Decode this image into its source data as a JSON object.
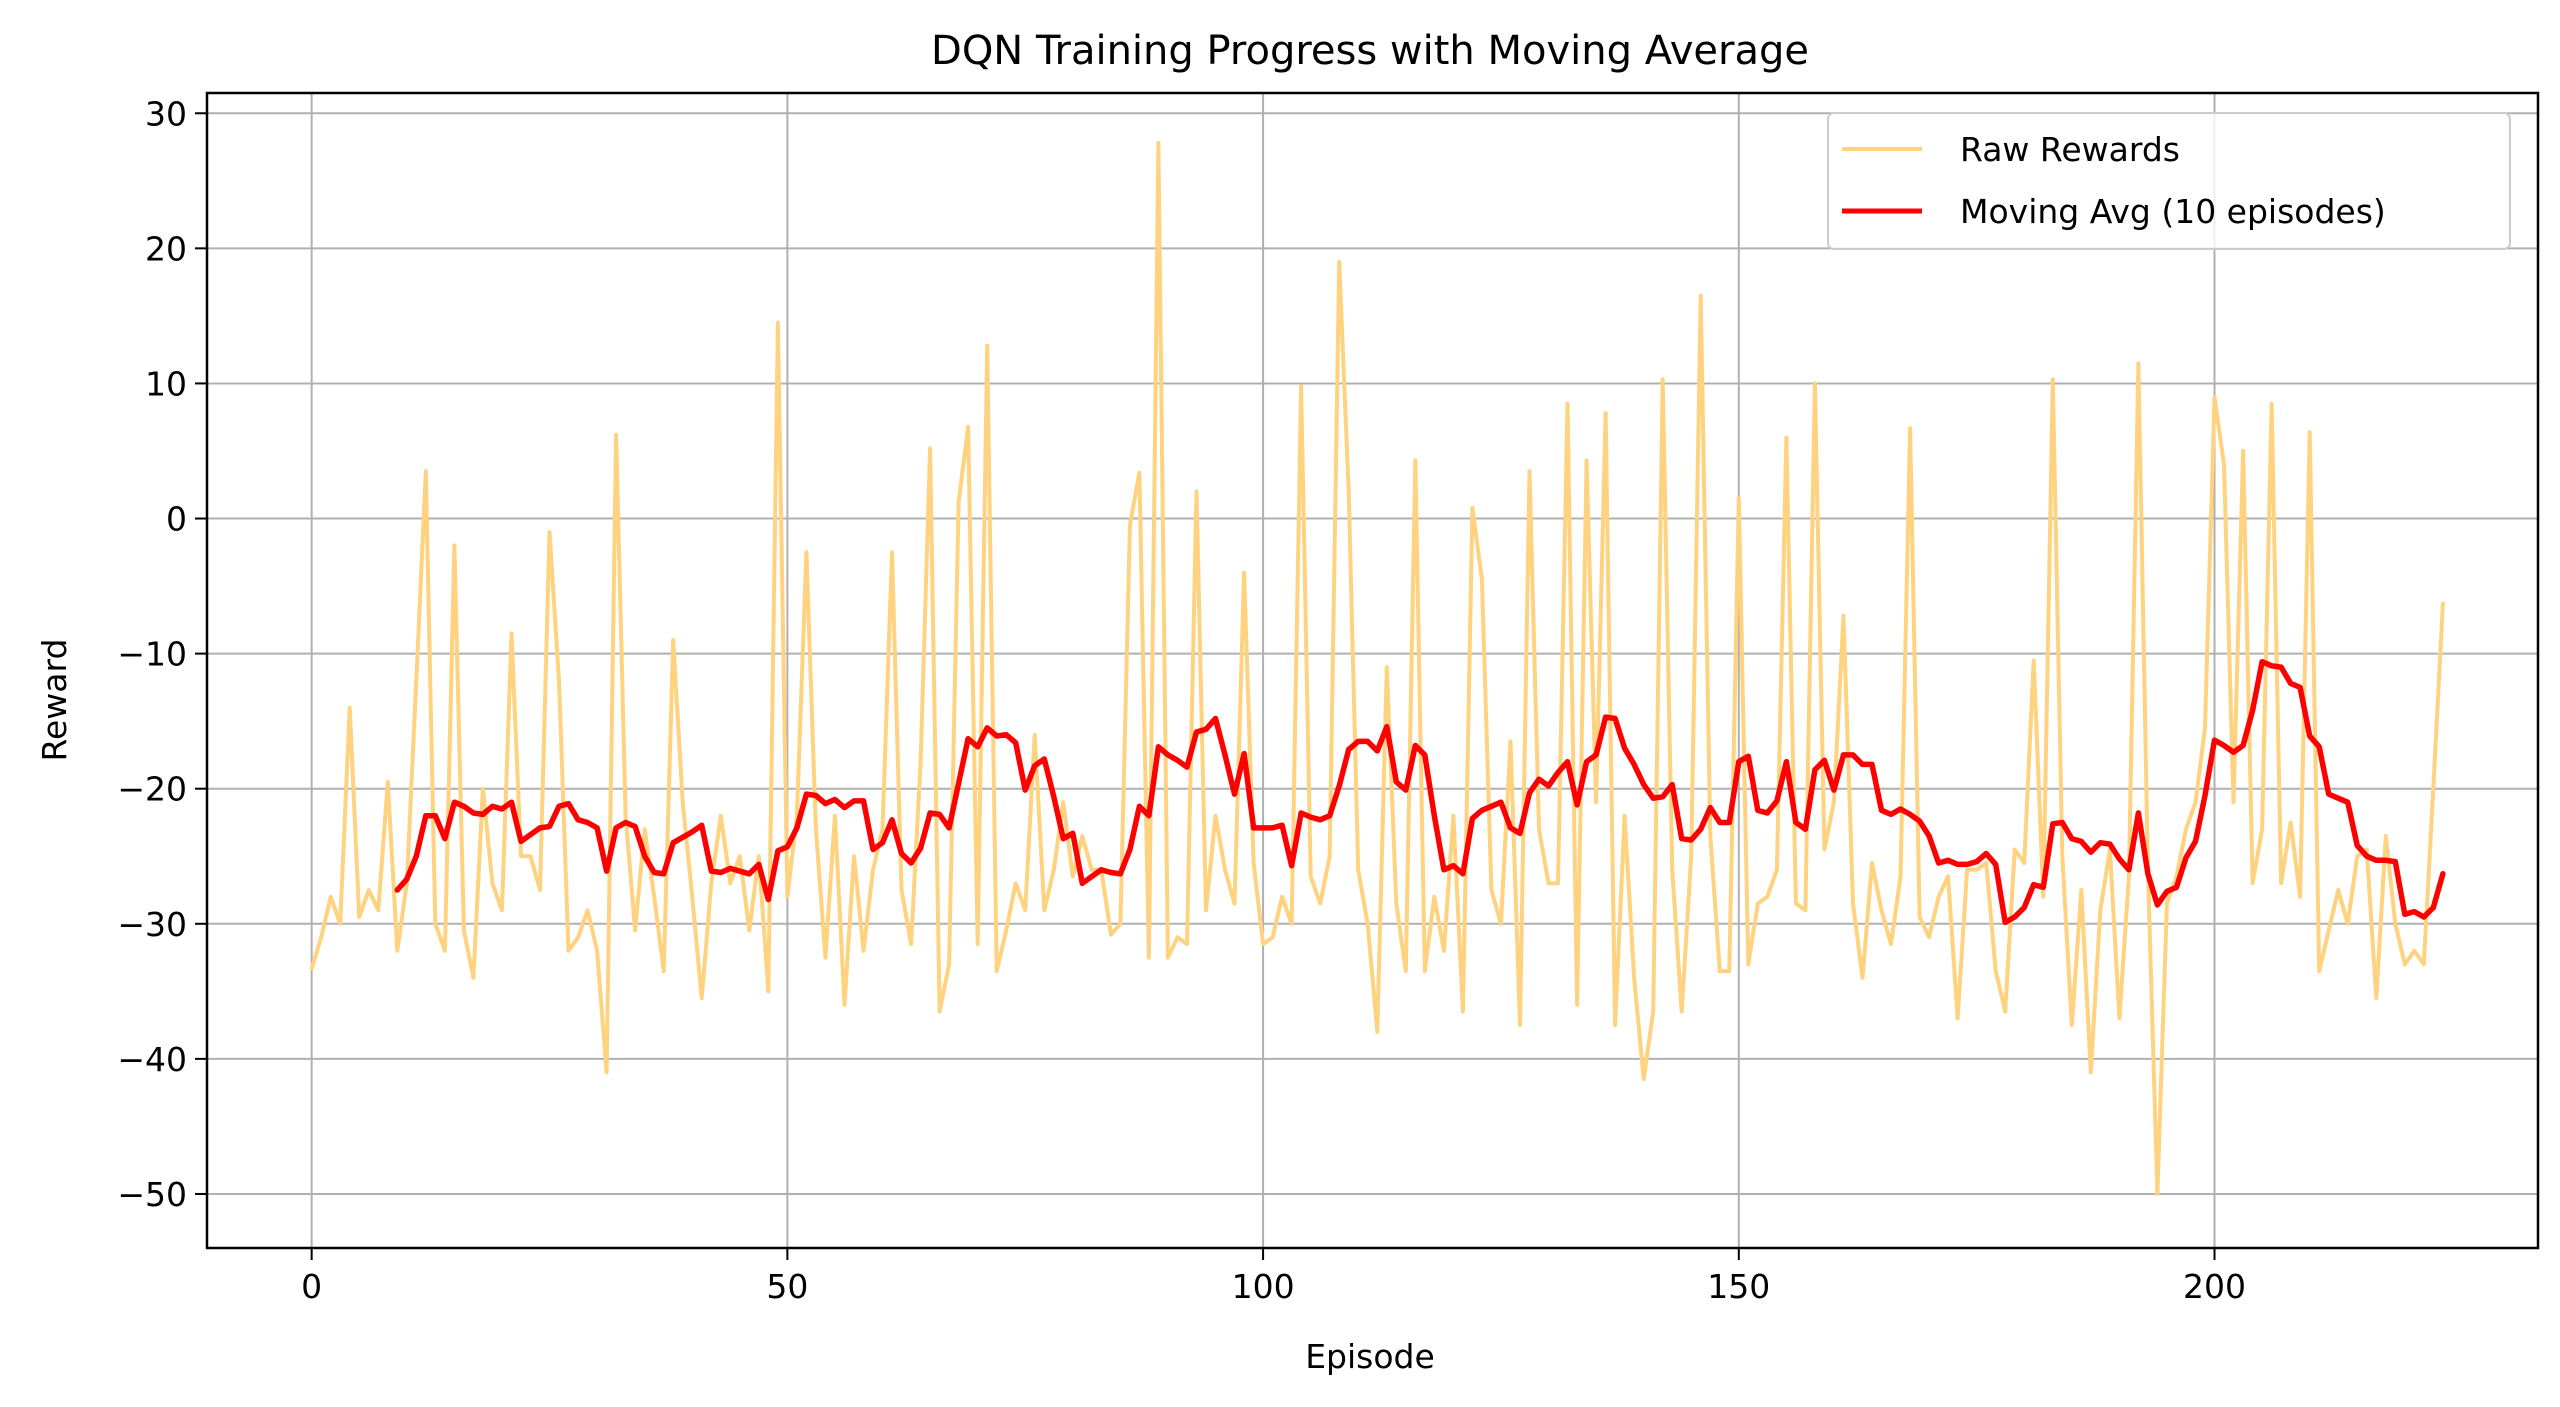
{
  "chart_data": {
    "type": "line",
    "title": "DQN Training Progress with Moving Average",
    "xlabel": "Episode",
    "ylabel": "Reward",
    "xlim": [
      -11,
      234
    ],
    "ylim": [
      -54,
      31.5
    ],
    "xticks": [
      0,
      50,
      100,
      150,
      200
    ],
    "yticks": [
      30,
      20,
      10,
      0,
      -10,
      -20,
      -30,
      -40,
      -50
    ],
    "grid": true,
    "legend_position": "top-right",
    "series": [
      {
        "name": "Raw Rewards",
        "color": "#ffd280",
        "x_start": 0,
        "values": [
          -33.3,
          -31,
          -28,
          -30,
          -14,
          -29.5,
          -27.5,
          -29,
          -19.5,
          -32,
          -27,
          -12,
          3.5,
          -30,
          -32,
          -2,
          -30.5,
          -34,
          -20,
          -27,
          -29,
          -8.5,
          -25,
          -25,
          -27.5,
          -1,
          -12,
          -32,
          -31,
          -29,
          -32,
          -41,
          6.2,
          -22,
          -30.5,
          -23,
          -28,
          -33.5,
          -9,
          -21,
          -28,
          -35.5,
          -27,
          -22,
          -27,
          -25,
          -30.5,
          -25,
          -35,
          14.5,
          -28,
          -22,
          -2.5,
          -23,
          -32.5,
          -22,
          -36,
          -25,
          -32,
          -26,
          -23,
          -2.5,
          -27.5,
          -31.5,
          -18,
          5.2,
          -36.5,
          -33,
          1.2,
          6.8,
          -31.5,
          12.8,
          -33.5,
          -30.5,
          -27,
          -29,
          -16,
          -29,
          -26,
          -21,
          -26.5,
          -23.5,
          -26,
          -26,
          -30.8,
          -30,
          -0.5,
          3.4,
          -32.5,
          27.8,
          -32.5,
          -31,
          -31.5,
          2,
          -29,
          -22,
          -26,
          -28.5,
          -4,
          -25.5,
          -31.5,
          -31,
          -28,
          -30,
          9.8,
          -26.5,
          -28.5,
          -25,
          19,
          2,
          -26,
          -30,
          -38,
          -11,
          -28.5,
          -33.5,
          4.3,
          -33.5,
          -28,
          -32,
          -22,
          -36.5,
          0.8,
          -4.5,
          -27.5,
          -30,
          -16.5,
          -37.5,
          3.5,
          -23,
          -27,
          -27,
          8.5,
          -36,
          4.3,
          -21,
          7.8,
          -37.5,
          -22,
          -34,
          -41.5,
          -36.5,
          10.3,
          -26,
          -36.5,
          -25,
          16.5,
          -23.5,
          -33.5,
          -33.5,
          1.5,
          -33,
          -28.5,
          -28,
          -26,
          6,
          -28.5,
          -29,
          10,
          -24.5,
          -21,
          -7.2,
          -28.5,
          -34,
          -25.5,
          -29,
          -31.5,
          -26.5,
          6.7,
          -29.5,
          -31,
          -28,
          -26.5,
          -37,
          -26,
          -26,
          -25.5,
          -33.5,
          -36.5,
          -24.5,
          -25.5,
          -10.5,
          -28,
          10.3,
          -25,
          -37.5,
          -27.5,
          -41,
          -29,
          -24.5,
          -37,
          -26.5,
          11.5,
          -26,
          -50,
          -28.5,
          -26.5,
          -23,
          -21,
          -15.5,
          9,
          4,
          -21,
          5,
          -27,
          -23,
          8.5,
          -27,
          -22.5,
          -28,
          6.4,
          -33.5,
          -30.5,
          -27.5,
          -30,
          -25,
          -24.5,
          -35.5,
          -23.5,
          -30,
          -33,
          -32,
          -33,
          -20,
          -6.3
        ]
      },
      {
        "name": "Moving Avg (10 episodes)",
        "color": "#ff0000",
        "x_start": 9,
        "values": [
          -27.5,
          -26.7,
          -25,
          -22,
          -22,
          -23.7,
          -21,
          -21.3,
          -21.8,
          -21.9,
          -21.3,
          -21.5,
          -21,
          -23.9,
          -23.4,
          -22.9,
          -22.8,
          -21.3,
          -21.1,
          -22.3,
          -22.5,
          -22.9,
          -26.1,
          -22.9,
          -22.5,
          -22.8,
          -25,
          -26.2,
          -26.3,
          -24,
          -23.6,
          -23.2,
          -22.7,
          -26.1,
          -26.2,
          -25.9,
          -26.1,
          -26.3,
          -25.6,
          -28.2,
          -24.6,
          -24.3,
          -22.9,
          -20.4,
          -20.5,
          -21.1,
          -20.8,
          -21.4,
          -20.9,
          -20.9,
          -24.5,
          -24,
          -22.3,
          -24.8,
          -25.5,
          -24.4,
          -21.8,
          -21.9,
          -22.9,
          -19.6,
          -16.3,
          -16.9,
          -15.5,
          -16.1,
          -16,
          -16.6,
          -20.1,
          -18.3,
          -17.8,
          -20.6,
          -23.7,
          -23.3,
          -27,
          -26.5,
          -26,
          -26.2,
          -26.3,
          -24.5,
          -21.3,
          -22,
          -16.9,
          -17.5,
          -17.9,
          -18.4,
          -15.8,
          -15.6,
          -14.8,
          -17.5,
          -20.4,
          -17.4,
          -22.9,
          -22.9,
          -22.9,
          -22.7,
          -25.7,
          -21.8,
          -22.1,
          -22.3,
          -22,
          -19.8,
          -17.1,
          -16.5,
          -16.5,
          -17.2,
          -15.4,
          -19.5,
          -20.1,
          -16.8,
          -17.5,
          -22,
          -26,
          -25.7,
          -26.3,
          -22.2,
          -21.6,
          -21.3,
          -21,
          -22.9,
          -23.3,
          -20.3,
          -19.3,
          -19.8,
          -18.8,
          -18,
          -21.2,
          -18,
          -17.5,
          -14.7,
          -14.8,
          -17,
          -18.2,
          -19.7,
          -20.7,
          -20.6,
          -19.7,
          -23.7,
          -23.8,
          -23,
          -21.4,
          -22.5,
          -22.5,
          -18,
          -17.6,
          -21.6,
          -21.8,
          -20.9,
          -18,
          -22.5,
          -23,
          -18.6,
          -17.9,
          -20.1,
          -17.5,
          -17.5,
          -18.2,
          -18.2,
          -21.6,
          -21.9,
          -21.5,
          -21.9,
          -22.4,
          -23.5,
          -25.5,
          -25.3,
          -25.6,
          -25.6,
          -25.4,
          -24.8,
          -25.6,
          -29.9,
          -29.5,
          -28.8,
          -27.1,
          -27.3,
          -22.6,
          -22.5,
          -23.7,
          -23.9,
          -24.7,
          -24,
          -24.1,
          -25.2,
          -26,
          -21.8,
          -26.3,
          -28.6,
          -27.6,
          -27.3,
          -25.1,
          -23.9,
          -20.5,
          -16.4,
          -16.8,
          -17.3,
          -16.8,
          -14.2,
          -10.6,
          -10.9,
          -11,
          -12.2,
          -12.5,
          -16.1,
          -16.9,
          -20.4,
          -20.7,
          -21,
          -24.2,
          -25,
          -25.3,
          -25.3,
          -25.4,
          -29.3,
          -29.1,
          -29.5,
          -28.8,
          -26.3
        ]
      }
    ]
  }
}
